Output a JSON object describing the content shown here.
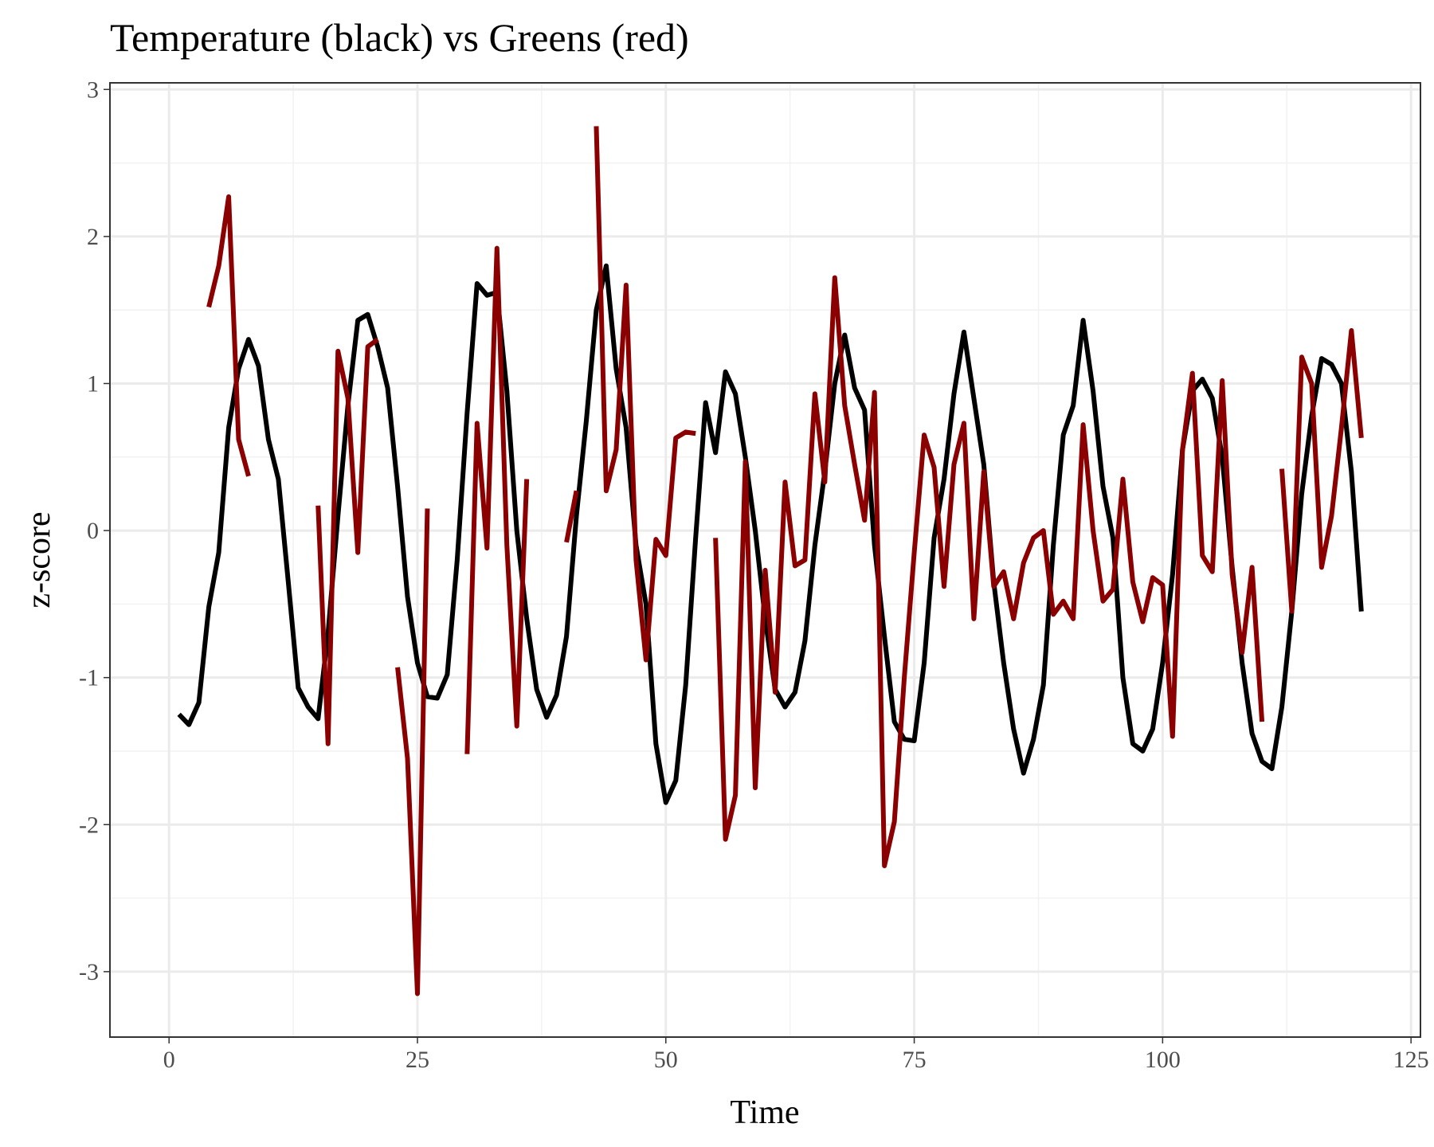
{
  "chart_data": {
    "type": "line",
    "title": "Temperature (black) vs Greens (red)",
    "x_label": "Time",
    "y_label": "z-score",
    "x": [
      1,
      2,
      3,
      4,
      5,
      6,
      7,
      8,
      9,
      10,
      11,
      12,
      13,
      14,
      15,
      16,
      17,
      18,
      19,
      20,
      21,
      22,
      23,
      24,
      25,
      26,
      27,
      28,
      29,
      30,
      31,
      32,
      33,
      34,
      35,
      36,
      37,
      38,
      39,
      40,
      41,
      42,
      43,
      44,
      45,
      46,
      47,
      48,
      49,
      50,
      51,
      52,
      53,
      54,
      55,
      56,
      57,
      58,
      59,
      60,
      61,
      62,
      63,
      64,
      65,
      66,
      67,
      68,
      69,
      70,
      71,
      72,
      73,
      74,
      75,
      76,
      77,
      78,
      79,
      80,
      81,
      82,
      83,
      84,
      85,
      86,
      87,
      88,
      89,
      90,
      91,
      92,
      93,
      94,
      95,
      96,
      97,
      98,
      99,
      100,
      101,
      102,
      103,
      104,
      105,
      106,
      107,
      108,
      109,
      110,
      111,
      112,
      113,
      114,
      115,
      116,
      117,
      118,
      119,
      120
    ],
    "series": [
      {
        "color": "#000000",
        "values": [
          -1.25,
          -1.32,
          -1.17,
          -0.52,
          -0.15,
          0.7,
          1.1,
          1.3,
          1.12,
          0.62,
          0.35,
          -0.35,
          -1.07,
          -1.2,
          -1.28,
          -0.7,
          0.1,
          0.85,
          1.43,
          1.47,
          1.25,
          0.97,
          0.3,
          -0.45,
          -0.9,
          -1.13,
          -1.14,
          -0.98,
          -0.2,
          0.8,
          1.68,
          1.6,
          1.62,
          0.95,
          0.0,
          -0.6,
          -1.08,
          -1.27,
          -1.12,
          -0.72,
          0.1,
          0.75,
          1.5,
          1.8,
          1.1,
          0.7,
          -0.1,
          -0.5,
          -1.45,
          -1.85,
          -1.7,
          -1.05,
          -0.05,
          0.87,
          0.53,
          1.08,
          0.93,
          0.5,
          0.0,
          -0.6,
          -1.08,
          -1.2,
          -1.1,
          -0.75,
          -0.1,
          0.4,
          1.0,
          1.33,
          0.97,
          0.82,
          -0.1,
          -0.72,
          -1.3,
          -1.42,
          -1.43,
          -0.9,
          -0.05,
          0.35,
          0.93,
          1.35,
          0.9,
          0.45,
          -0.35,
          -0.9,
          -1.35,
          -1.65,
          -1.42,
          -1.05,
          -0.1,
          0.65,
          0.85,
          1.43,
          0.95,
          0.3,
          -0.05,
          -1.0,
          -1.45,
          -1.5,
          -1.35,
          -0.9,
          -0.3,
          0.55,
          0.95,
          1.03,
          0.9,
          0.5,
          -0.25,
          -0.9,
          -1.38,
          -1.57,
          -1.62,
          -1.2,
          -0.55,
          0.25,
          0.78,
          1.17,
          1.13,
          1.0,
          0.4,
          -0.55
        ]
      },
      {
        "color": "#8b0000",
        "values": [
          null,
          null,
          null,
          1.52,
          1.8,
          2.27,
          0.62,
          0.37,
          null,
          null,
          null,
          null,
          null,
          null,
          0.17,
          -1.45,
          1.22,
          0.9,
          -0.15,
          1.25,
          1.3,
          null,
          -0.93,
          -1.55,
          -3.15,
          0.15,
          null,
          null,
          null,
          -1.52,
          0.73,
          -0.12,
          1.92,
          -0.1,
          -1.33,
          0.35,
          null,
          null,
          null,
          -0.08,
          0.27,
          null,
          2.75,
          0.27,
          0.55,
          1.67,
          -0.2,
          -0.88,
          -0.06,
          -0.17,
          0.63,
          0.67,
          0.66,
          null,
          -0.05,
          -2.1,
          -1.8,
          0.47,
          -1.75,
          -0.27,
          -1.1,
          0.33,
          -0.24,
          -0.2,
          0.93,
          0.33,
          1.72,
          0.85,
          0.45,
          0.07,
          0.94,
          -2.28,
          -1.98,
          -1.0,
          -0.15,
          0.65,
          0.43,
          -0.38,
          0.45,
          0.73,
          -0.6,
          0.4,
          -0.38,
          -0.28,
          -0.6,
          -0.22,
          -0.05,
          0.0,
          -0.57,
          -0.48,
          -0.6,
          0.72,
          0.0,
          -0.48,
          -0.4,
          0.35,
          -0.35,
          -0.62,
          -0.32,
          -0.37,
          -1.4,
          0.55,
          1.07,
          -0.17,
          -0.28,
          1.02,
          -0.3,
          -0.83,
          -0.25,
          -1.3,
          null,
          0.42,
          -0.55,
          1.18,
          1.0,
          -0.25,
          0.1,
          0.7,
          1.36,
          0.63
        ]
      }
    ],
    "xlim": [
      -5.95,
      125.95
    ],
    "ylim": [
      -3.445,
      3.045
    ],
    "xticks": [
      0,
      25,
      50,
      75,
      100,
      125
    ],
    "yticks": [
      -3,
      -2,
      -1,
      0,
      1,
      2,
      3
    ],
    "grid": true
  }
}
